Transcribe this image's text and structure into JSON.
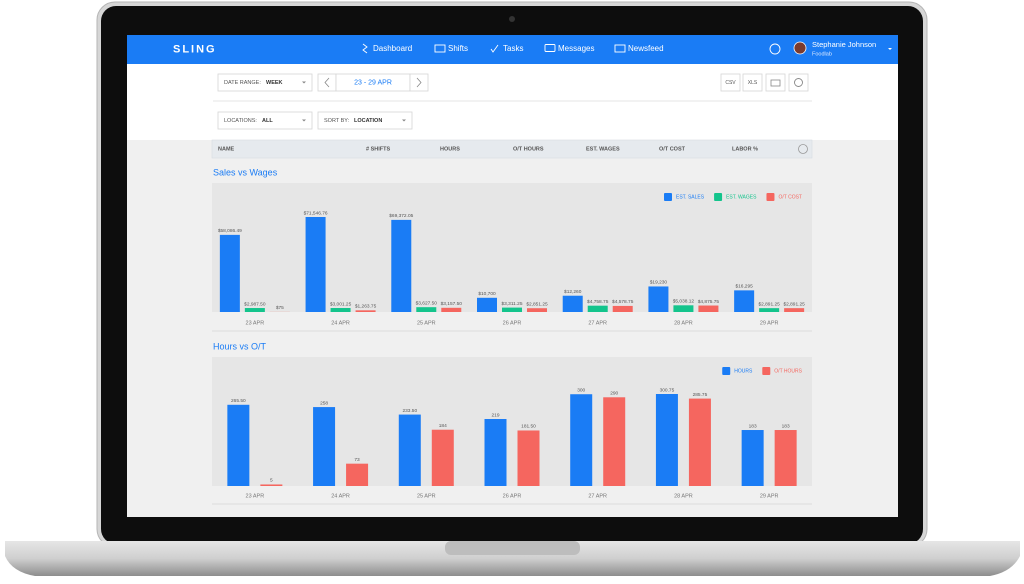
{
  "app": {
    "brand": "SLING",
    "nav": [
      "Dashboard",
      "Shifts",
      "Tasks",
      "Messages",
      "Newsfeed"
    ],
    "user": {
      "name": "Stephanie Johnson",
      "org": "Foodlab"
    },
    "filters": {
      "date_range_label": "DATE RANGE:",
      "date_range_value": "WEEK",
      "period": "23 - 29 APR",
      "exports": [
        "CSV",
        "XLS"
      ],
      "locations_label": "LOCATIONS:",
      "locations_value": "ALL",
      "sort_label": "SORT BY:",
      "sort_value": "LOCATION"
    },
    "table_header": [
      "NAME",
      "# SHIFTS",
      "HOURS",
      "O/T HOURS",
      "EST. WAGES",
      "O/T COST",
      "LABOR %"
    ]
  },
  "chart_data": [
    {
      "type": "bar",
      "title": "Sales vs Wages",
      "legend": "top-right",
      "categories": [
        "23 APR",
        "24 APR",
        "25 APR",
        "26 APR",
        "27 APR",
        "28 APR",
        "29 APR"
      ],
      "series": [
        {
          "name": "EST. SALES",
          "color": "#1a7cf5",
          "values": [
            58086.49,
            71546.76,
            69372.05,
            10700,
            12260,
            19230,
            16295
          ],
          "value_labels": [
            "$58,086.49",
            "$71,546.76",
            "$69,372.05",
            "$10,700",
            "$12,260",
            "$19,230",
            "$16,295"
          ]
        },
        {
          "name": "EST. WAGES",
          "color": "#14c48c",
          "values": [
            2987.5,
            3001.25,
            3627.5,
            3311.25,
            4758.75,
            5038.12,
            2891.25
          ],
          "value_labels": [
            "$2,987.50",
            "$3,001.25",
            "$3,627.50",
            "$3,311.25",
            "$4,758.75",
            "$5,038.12",
            "$2,891.25"
          ]
        },
        {
          "name": "O/T COST",
          "color": "#f5665f",
          "values": [
            75,
            1263.75,
            3157.5,
            2851.25,
            4578.75,
            4875.75,
            2891.25
          ],
          "value_labels": [
            "$75",
            "$1,263.75",
            "$3,157.50",
            "$2,851.25",
            "$4,578.75",
            "$4,875.75",
            "$2,891.25"
          ]
        }
      ]
    },
    {
      "type": "bar",
      "title": "Hours vs O/T",
      "legend": "top-right",
      "categories": [
        "23 APR",
        "24 APR",
        "25 APR",
        "26 APR",
        "27 APR",
        "28 APR",
        "29 APR"
      ],
      "series": [
        {
          "name": "HOURS",
          "color": "#1a7cf5",
          "values": [
            265.5,
            258,
            233.5,
            219,
            300,
            300.75,
            183
          ],
          "value_labels": [
            "265.50",
            "258",
            "233.50",
            "219",
            "300",
            "300.75",
            "183"
          ]
        },
        {
          "name": "O/T HOURS",
          "color": "#f5665f",
          "values": [
            5,
            73,
            184,
            181.5,
            290,
            285.75,
            183
          ],
          "value_labels": [
            "5",
            "73",
            "184",
            "181.50",
            "290",
            "285.75",
            "183"
          ]
        }
      ]
    }
  ]
}
